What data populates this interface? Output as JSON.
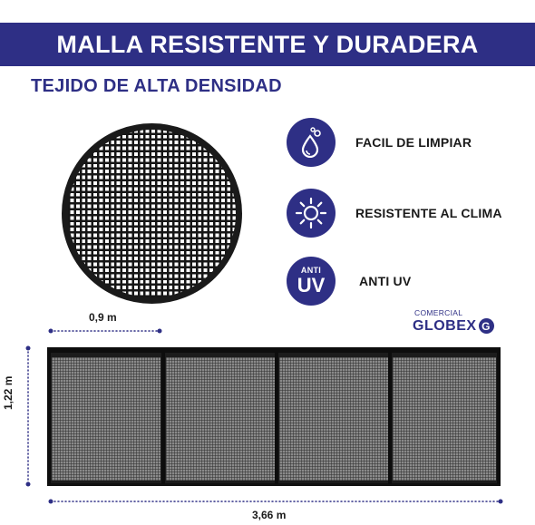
{
  "banner": {
    "title": "MALLA RESISTENTE Y DURADERA"
  },
  "subtitle": "TEJIDO DE ALTA DENSIDAD",
  "features": [
    {
      "label": "FACIL DE LIMPIAR",
      "icon": "water-drops-icon"
    },
    {
      "label": "RESISTENTE AL CLIMA",
      "icon": "sun-icon"
    },
    {
      "label": "ANTI UV",
      "icon": "anti-uv-icon",
      "icon_text_top": "ANTI",
      "icon_text_main": "UV"
    }
  ],
  "dimensions": {
    "panel_width": "0,9 m",
    "height": "1,22 m",
    "total_width": "3,66 m"
  },
  "logo": {
    "small": "COMERCIAL",
    "main": "GLOBEX",
    "mark": "G"
  },
  "colors": {
    "brand": "#2e2f85",
    "mesh": "#1a1a1a",
    "dimension_line": "#2e2f85"
  }
}
